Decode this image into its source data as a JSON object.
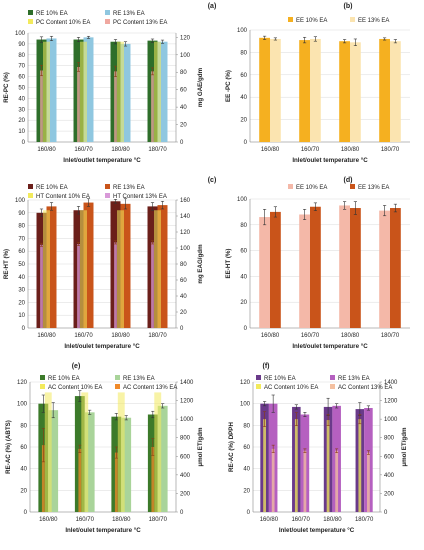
{
  "figure": {
    "panels": [
      "(a)",
      "(b)",
      "(c)",
      "(d)",
      "(e)",
      "(f)"
    ]
  },
  "chart_data": [
    {
      "id": "a",
      "type": "bar",
      "title": "(a)",
      "xlabel": "Inlet/outlet temperature °C",
      "ylabel": "RE-PC (%)",
      "y2label": "mg GAE/gdm",
      "categories": [
        "160/80",
        "160/70",
        "180/80",
        "180/70"
      ],
      "ylim": [
        0,
        100
      ],
      "yticks": [
        0,
        10,
        20,
        30,
        40,
        50,
        60,
        70,
        80,
        90,
        100
      ],
      "y2lim": [
        0,
        125
      ],
      "y2ticks": [
        0,
        20,
        40,
        60,
        80,
        100,
        120
      ],
      "legend_position": "top",
      "series": [
        {
          "name": "RE 10% EA",
          "values": [
            94,
            94,
            92,
            93
          ],
          "err": [
            2.5,
            2,
            2,
            1.5
          ],
          "color": "#2e6e2a",
          "axis": "left"
        },
        {
          "name": "RE 13% EA",
          "values": [
            95,
            96,
            90,
            92
          ],
          "err": [
            2,
            1,
            2,
            1.5
          ],
          "color": "#8fc7e0",
          "axis": "left"
        },
        {
          "name": "PC Content 10% EA",
          "values": [
            null,
            null,
            null,
            null
          ],
          "color": "#f2ea5c",
          "axis": "right",
          "role": "background"
        },
        {
          "name": "PC Content 13% EA",
          "values": [
            82,
            86,
            81,
            81
          ],
          "err": [
            6,
            5,
            6,
            4
          ],
          "color": "#f0a8a0",
          "axis": "right",
          "role": "marker"
        }
      ]
    },
    {
      "id": "b",
      "type": "bar",
      "title": "(b)",
      "xlabel": "Inlet/oulet temperature °C",
      "ylabel": "EE -PC (%)",
      "categories": [
        "160/80",
        "160/70",
        "180/80",
        "180/70"
      ],
      "ylim": [
        0,
        100
      ],
      "yticks": [
        0,
        20,
        40,
        60,
        80,
        100
      ],
      "legend_position": "top",
      "series": [
        {
          "name": "EE 10% EA",
          "values": [
            93,
            91,
            90,
            92
          ],
          "err": [
            1.5,
            2.5,
            1.5,
            1
          ],
          "color": "#f5b020"
        },
        {
          "name": "EE 13% EA",
          "values": [
            92,
            92,
            89,
            90
          ],
          "err": [
            1,
            2,
            3,
            1.5
          ],
          "color": "#fbe4b0"
        }
      ]
    },
    {
      "id": "c",
      "type": "bar",
      "title": "(c)",
      "xlabel": "Inlet/oulet temperature °C",
      "ylabel": "RE-HT (%)",
      "y2label": "mg EAG/gdm",
      "categories": [
        "160/80",
        "160/70",
        "180/80",
        "180/70"
      ],
      "ylim": [
        0,
        100
      ],
      "yticks": [
        0,
        10,
        20,
        30,
        40,
        50,
        60,
        70,
        80,
        90,
        100
      ],
      "y2lim": [
        0,
        160
      ],
      "y2ticks": [
        0,
        20,
        40,
        60,
        80,
        100,
        120,
        140,
        160
      ],
      "legend_position": "top",
      "series": [
        {
          "name": "RE 10% EA",
          "values": [
            90,
            92,
            99,
            95
          ],
          "err": [
            3,
            3,
            1.5,
            3
          ],
          "color": "#6b1f1a",
          "axis": "left"
        },
        {
          "name": "RE 13% EA",
          "values": [
            95,
            98,
            97,
            96
          ],
          "err": [
            3,
            3,
            4,
            3
          ],
          "color": "#c9541a",
          "axis": "left"
        },
        {
          "name": "HT Content 10% EA",
          "values": [
            null,
            null,
            null,
            null
          ],
          "color": "#f2ea5c",
          "axis": "right",
          "role": "background"
        },
        {
          "name": "HT Content 13% EA",
          "values": [
            104,
            105,
            107,
            107
          ],
          "err": [
            2,
            2,
            2,
            2
          ],
          "color": "#d899d8",
          "axis": "right",
          "role": "marker"
        }
      ]
    },
    {
      "id": "d",
      "type": "bar",
      "title": "(d)",
      "xlabel": "Inlet/oulet temperature °C",
      "ylabel": "EE-HT (%)",
      "categories": [
        "160/80",
        "160/70",
        "180/80",
        "180/70"
      ],
      "ylim": [
        0,
        100
      ],
      "yticks": [
        0,
        20,
        40,
        60,
        80,
        100
      ],
      "legend_position": "top",
      "series": [
        {
          "name": "EE 10% EA",
          "values": [
            86,
            88,
            95,
            91
          ],
          "err": [
            6,
            4,
            3,
            4
          ],
          "color": "#f4b8a8"
        },
        {
          "name": "EE 13% EA",
          "values": [
            90,
            94,
            93,
            93
          ],
          "err": [
            4,
            3,
            5,
            3
          ],
          "color": "#c9541a"
        }
      ]
    },
    {
      "id": "e",
      "type": "bar",
      "title": "(e)",
      "xlabel": "Inlet/oulet temperature °C",
      "ylabel": "RE-AC (%) (ABTS)",
      "y2label": "µmol ET/gdm",
      "categories": [
        "160/80",
        "160/70",
        "180/80",
        "180/70"
      ],
      "ylim": [
        0,
        120
      ],
      "yticks": [
        0,
        20,
        40,
        60,
        80,
        100,
        120
      ],
      "y2lim": [
        0,
        1400
      ],
      "y2ticks": [
        0,
        200,
        400,
        600,
        800,
        1000,
        1200,
        1400
      ],
      "legend_position": "top",
      "series": [
        {
          "name": "RE 10% EA",
          "values": [
            100,
            107,
            88,
            90
          ],
          "err": [
            8,
            5,
            3,
            3
          ],
          "color": "#3c7a2a",
          "axis": "left"
        },
        {
          "name": "RE 13% EA",
          "values": [
            94,
            92,
            87,
            98
          ],
          "err": [
            7,
            2,
            2,
            2
          ],
          "color": "#a9d49a",
          "axis": "left"
        },
        {
          "name": "AC Content 10% EA",
          "values": [
            null,
            null,
            null,
            null
          ],
          "color": "#f2ea5c",
          "axis": "right",
          "role": "background"
        },
        {
          "name": "AC Content 13% EA",
          "values": [
            720,
            680,
            640,
            700
          ],
          "err": [
            180,
            40,
            60,
            90
          ],
          "color": "#f08a2a",
          "axis": "right",
          "role": "marker"
        }
      ]
    },
    {
      "id": "f",
      "type": "bar",
      "title": "(f)",
      "xlabel": "Inlet/oulet temperature °C",
      "ylabel": "RE-AC (%) DPPH",
      "y2label": "µmol ET/gdm",
      "categories": [
        "160/80",
        "160/70",
        "180/80",
        "180/70"
      ],
      "ylim": [
        0,
        120
      ],
      "yticks": [
        0,
        20,
        40,
        60,
        80,
        100,
        120
      ],
      "y2lim": [
        0,
        1400
      ],
      "y2ticks": [
        0,
        200,
        400,
        600,
        800,
        1000,
        1200,
        1400
      ],
      "legend_position": "top",
      "series": [
        {
          "name": "RE 10% EA",
          "values": [
            100,
            97,
            97,
            95
          ],
          "err": [
            2,
            2,
            8,
            6
          ],
          "color": "#6a3a8a",
          "axis": "left"
        },
        {
          "name": "RE 13% EA",
          "values": [
            100,
            90,
            98,
            96
          ],
          "err": [
            8,
            2,
            2,
            2
          ],
          "color": "#b560c0",
          "axis": "left"
        },
        {
          "name": "AC Content 10% EA",
          "values": [
            1000,
            1000,
            990,
            1000
          ],
          "err": [
            80,
            70,
            60,
            50
          ],
          "color": "#f2ea5c",
          "axis": "right",
          "role": "marker"
        },
        {
          "name": "AC Content 13% EA",
          "values": [
            680,
            660,
            660,
            640
          ],
          "err": [
            40,
            20,
            20,
            20
          ],
          "color": "#f4c0a0",
          "axis": "right",
          "role": "marker"
        }
      ]
    }
  ]
}
